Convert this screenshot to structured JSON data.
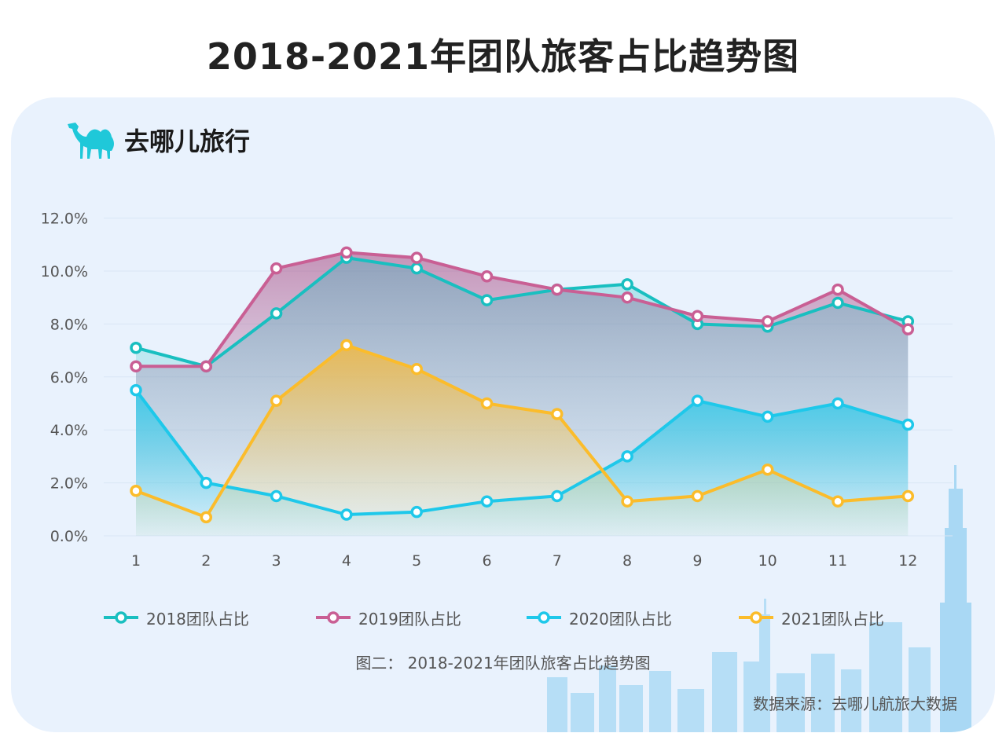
{
  "page": {
    "title": "2018-2021年团队旅客占比趋势图",
    "logo_text": "去哪儿旅行",
    "caption": "图二： 2018-2021年团队旅客占比趋势图",
    "source": "数据来源：去哪儿航旅大数据"
  },
  "chart_data": {
    "type": "area",
    "title": "2018-2021年团队旅客占比趋势图",
    "categories": [
      "1",
      "2",
      "3",
      "4",
      "5",
      "6",
      "7",
      "8",
      "9",
      "10",
      "11",
      "12"
    ],
    "y_unit": "%",
    "ylim": [
      0,
      12
    ],
    "y_ticks": [
      "0.0%",
      "2.0%",
      "4.0%",
      "6.0%",
      "8.0%",
      "10.0%",
      "12.0%"
    ],
    "grid": "horizontal",
    "legend_position": "bottom",
    "series": [
      {
        "name": "2018团队占比",
        "color": "#19bfc0",
        "values": [
          7.1,
          6.4,
          8.4,
          10.5,
          10.1,
          8.9,
          9.3,
          9.5,
          8.0,
          7.9,
          8.8,
          8.1
        ]
      },
      {
        "name": "2019团队占比",
        "color": "#c95f94",
        "values": [
          6.4,
          6.4,
          10.1,
          10.7,
          10.5,
          9.8,
          9.3,
          9.0,
          8.3,
          8.1,
          9.3,
          7.8
        ]
      },
      {
        "name": "2020团队占比",
        "color": "#1ec8ea",
        "values": [
          5.5,
          2.0,
          1.5,
          0.8,
          0.9,
          1.3,
          1.5,
          3.0,
          5.1,
          4.5,
          5.0,
          4.2
        ]
      },
      {
        "name": "2021团队占比",
        "color": "#fbbc2b",
        "values": [
          1.7,
          0.7,
          5.1,
          7.2,
          6.3,
          5.0,
          4.6,
          1.3,
          1.5,
          2.5,
          1.3,
          1.5
        ]
      }
    ]
  }
}
